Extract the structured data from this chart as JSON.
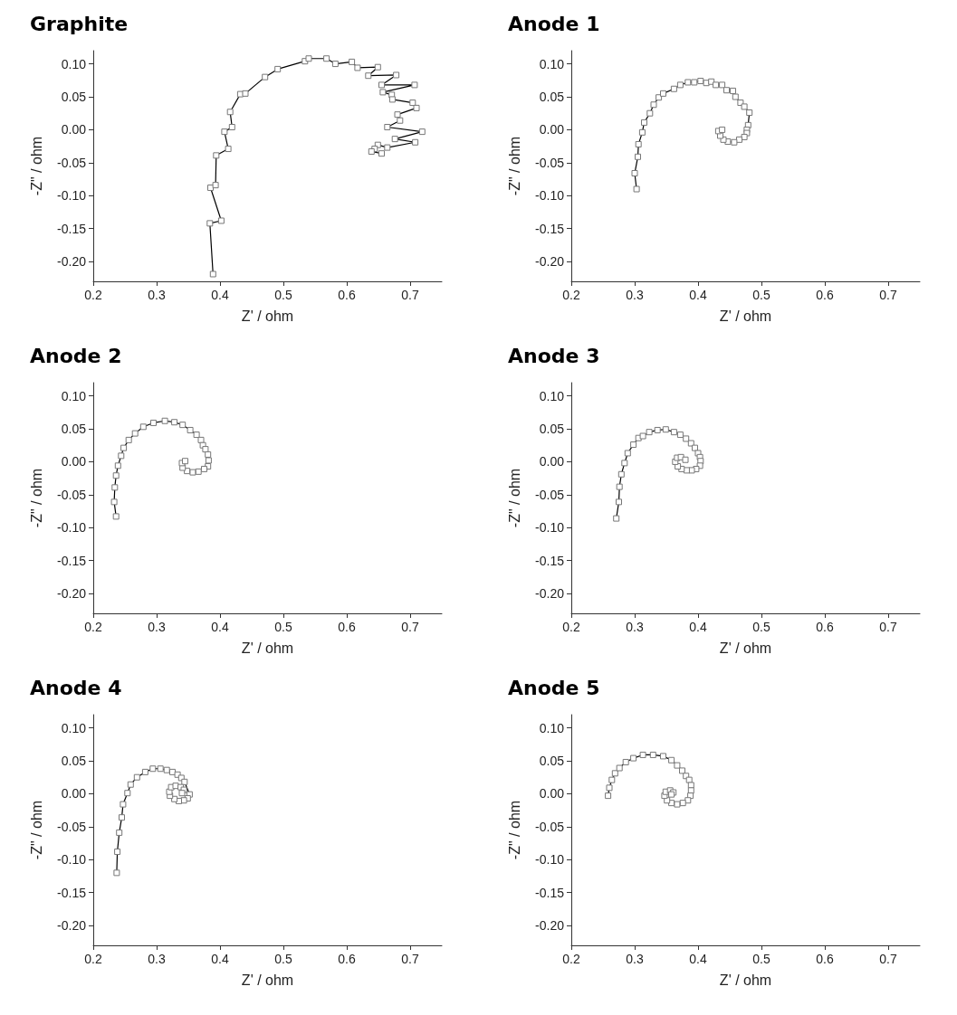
{
  "chart_data": [
    {
      "type": "line",
      "title": "Graphite",
      "xlabel": "Z' / ohm",
      "ylabel": "-Z\" / ohm",
      "xlim": [
        0.2,
        0.75
      ],
      "ylim": [
        -0.23,
        0.12
      ],
      "xticks": [
        0.2,
        0.3,
        0.4,
        0.5,
        0.6,
        0.7
      ],
      "yticks": [
        {
          "value": -0.2,
          "label": "-0.20"
        },
        -0.15,
        {
          "value": -0.1,
          "label": "-0.10"
        },
        -0.05,
        {
          "value": 0,
          "label": "0.00"
        },
        0.05,
        {
          "value": 0.1,
          "label": "0.10"
        }
      ],
      "marker": "square",
      "line_style": "solid",
      "series": [
        {
          "color": "#000000",
          "x": [
            0.389,
            0.384,
            0.402,
            0.385,
            0.393,
            0.394,
            0.413,
            0.407,
            0.419,
            0.416,
            0.432,
            0.44,
            0.471,
            0.491,
            0.534,
            0.54,
            0.568,
            0.582,
            0.608,
            0.617,
            0.649,
            0.634,
            0.678,
            0.655,
            0.707,
            0.657,
            0.671,
            0.672,
            0.704,
            0.71,
            0.68,
            0.684,
            0.664,
            0.719,
            0.676,
            0.708,
            0.664,
            0.649,
            0.644,
            0.639,
            0.655
          ],
          "values": [
            -0.219,
            -0.142,
            -0.138,
            -0.088,
            -0.084,
            -0.039,
            -0.029,
            -0.003,
            0.004,
            0.027,
            0.054,
            0.055,
            0.08,
            0.092,
            0.104,
            0.108,
            0.108,
            0.1,
            0.103,
            0.094,
            0.095,
            0.082,
            0.083,
            0.068,
            0.068,
            0.057,
            0.053,
            0.046,
            0.041,
            0.033,
            0.023,
            0.014,
            0.004,
            -0.003,
            -0.014,
            -0.019,
            -0.027,
            -0.023,
            -0.029,
            -0.033,
            -0.036
          ]
        }
      ]
    },
    {
      "type": "line",
      "title": "Anode 1",
      "xlabel": "Z' / ohm",
      "ylabel": "-Z\" / ohm",
      "xlim": [
        0.2,
        0.75
      ],
      "ylim": [
        -0.23,
        0.12
      ],
      "xticks": [
        0.2,
        0.3,
        0.4,
        0.5,
        0.6,
        0.7
      ],
      "yticks": [
        {
          "value": -0.2,
          "label": "-0.20"
        },
        -0.15,
        {
          "value": -0.1,
          "label": "-0.10"
        },
        -0.05,
        {
          "value": 0,
          "label": "0.00"
        },
        0.05,
        {
          "value": 0.1,
          "label": "0.10"
        }
      ],
      "marker": "square",
      "line_style": "solid",
      "series": [
        {
          "color": "#000000",
          "x": [
            0.303,
            0.3,
            0.305,
            0.306,
            0.312,
            0.315,
            0.324,
            0.33,
            0.338,
            0.345,
            0.362,
            0.372,
            0.384,
            0.394,
            0.404,
            0.413,
            0.421,
            0.428,
            0.438,
            0.445,
            0.455,
            0.459,
            0.467,
            0.473,
            0.481,
            0.479,
            0.477,
            0.477,
            0.473,
            0.465,
            0.457,
            0.447,
            0.44,
            0.435,
            0.432,
            0.438
          ],
          "values": [
            -0.09,
            -0.066,
            -0.041,
            -0.022,
            -0.004,
            0.011,
            0.025,
            0.038,
            0.049,
            0.055,
            0.062,
            0.068,
            0.072,
            0.072,
            0.074,
            0.071,
            0.073,
            0.068,
            0.068,
            0.06,
            0.059,
            0.05,
            0.041,
            0.035,
            0.026,
            0.007,
            0,
            -0.005,
            -0.011,
            -0.015,
            -0.019,
            -0.018,
            -0.015,
            -0.009,
            -0.002,
            0
          ]
        }
      ]
    },
    {
      "type": "line",
      "title": "Anode 2",
      "xlabel": "Z' / ohm",
      "ylabel": "-Z\" / ohm",
      "xlim": [
        0.2,
        0.75
      ],
      "ylim": [
        -0.23,
        0.12
      ],
      "xticks": [
        0.2,
        0.3,
        0.4,
        0.5,
        0.6,
        0.7
      ],
      "yticks": [
        {
          "value": -0.2,
          "label": "-0.20"
        },
        -0.15,
        {
          "value": -0.1,
          "label": "-0.10"
        },
        -0.05,
        {
          "value": 0,
          "label": "0.00"
        },
        0.05,
        {
          "value": 0.1,
          "label": "0.10"
        }
      ],
      "marker": "square",
      "line_style": "solid",
      "series": [
        {
          "color": "#000000",
          "x": [
            0.236,
            0.233,
            0.234,
            0.236,
            0.239,
            0.244,
            0.248,
            0.256,
            0.266,
            0.279,
            0.295,
            0.313,
            0.328,
            0.341,
            0.353,
            0.363,
            0.37,
            0.373,
            0.377,
            0.381,
            0.382,
            0.381,
            0.375,
            0.366,
            0.357,
            0.348,
            0.341,
            0.34,
            0.345
          ],
          "values": [
            -0.083,
            -0.061,
            -0.039,
            -0.021,
            -0.006,
            0.009,
            0.021,
            0.033,
            0.043,
            0.053,
            0.059,
            0.062,
            0.06,
            0.056,
            0.048,
            0.041,
            0.033,
            0.025,
            0.019,
            0.011,
            0.002,
            -0.007,
            -0.011,
            -0.015,
            -0.016,
            -0.014,
            -0.009,
            -0.002,
            0.001
          ]
        }
      ]
    },
    {
      "type": "line",
      "title": "Anode 3",
      "xlabel": "Z' / ohm",
      "ylabel": "-Z\" / ohm",
      "xlim": [
        0.2,
        0.75
      ],
      "ylim": [
        -0.23,
        0.12
      ],
      "xticks": [
        0.2,
        0.3,
        0.4,
        0.5,
        0.6,
        0.7
      ],
      "yticks": [
        {
          "value": -0.2,
          "label": "-0.20"
        },
        -0.15,
        {
          "value": -0.1,
          "label": "-0.10"
        },
        -0.05,
        {
          "value": 0,
          "label": "0.00"
        },
        0.05,
        {
          "value": 0.1,
          "label": "0.10"
        }
      ],
      "marker": "square",
      "line_style": "solid",
      "series": [
        {
          "color": "#000000",
          "x": [
            0.271,
            0.275,
            0.276,
            0.279,
            0.284,
            0.289,
            0.298,
            0.306,
            0.313,
            0.323,
            0.336,
            0.349,
            0.362,
            0.372,
            0.381,
            0.389,
            0.395,
            0.4,
            0.403,
            0.404,
            0.403,
            0.397,
            0.39,
            0.382,
            0.374,
            0.368,
            0.364,
            0.367,
            0.373,
            0.38
          ],
          "values": [
            -0.086,
            -0.061,
            -0.038,
            -0.019,
            -0.002,
            0.013,
            0.026,
            0.036,
            0.039,
            0.045,
            0.048,
            0.049,
            0.045,
            0.041,
            0.035,
            0.028,
            0.021,
            0.013,
            0.007,
            0.001,
            -0.006,
            -0.011,
            -0.013,
            -0.013,
            -0.011,
            -0.007,
            0,
            0.006,
            0.007,
            0.003
          ]
        }
      ]
    },
    {
      "type": "line",
      "title": "Anode 4",
      "xlabel": "Z' / ohm",
      "ylabel": "-Z\" / ohm",
      "xlim": [
        0.2,
        0.75
      ],
      "ylim": [
        -0.23,
        0.12
      ],
      "xticks": [
        0.2,
        0.3,
        0.4,
        0.5,
        0.6,
        0.7
      ],
      "yticks": [
        {
          "value": -0.2,
          "label": "-0.20"
        },
        -0.15,
        {
          "value": -0.1,
          "label": "-0.10"
        },
        -0.05,
        {
          "value": 0,
          "label": "0.00"
        },
        0.05,
        {
          "value": 0.1,
          "label": "0.10"
        }
      ],
      "marker": "square",
      "line_style": "solid",
      "series": [
        {
          "color": "#000000",
          "x": [
            0.237,
            0.238,
            0.241,
            0.245,
            0.247,
            0.254,
            0.259,
            0.269,
            0.282,
            0.294,
            0.306,
            0.316,
            0.325,
            0.333,
            0.339,
            0.344,
            0.352,
            0.349,
            0.343,
            0.335,
            0.328,
            0.321,
            0.32,
            0.323,
            0.33,
            0.338,
            0.343,
            0.34
          ],
          "values": [
            -0.12,
            -0.088,
            -0.059,
            -0.036,
            -0.016,
            0.001,
            0.014,
            0.025,
            0.033,
            0.038,
            0.038,
            0.036,
            0.033,
            0.029,
            0.024,
            0.018,
            -0.001,
            -0.007,
            -0.01,
            -0.011,
            -0.008,
            -0.003,
            0.003,
            0.01,
            0.012,
            0.01,
            0.006,
            0.001
          ]
        }
      ]
    },
    {
      "type": "line",
      "title": "Anode 5",
      "xlabel": "Z' / ohm",
      "ylabel": "-Z\" / ohm",
      "xlim": [
        0.2,
        0.75
      ],
      "ylim": [
        -0.23,
        0.12
      ],
      "xticks": [
        0.2,
        0.3,
        0.4,
        0.5,
        0.6,
        0.7
      ],
      "yticks": [
        {
          "value": -0.2,
          "label": "-0.20"
        },
        -0.15,
        {
          "value": -0.1,
          "label": "-0.10"
        },
        -0.05,
        {
          "value": 0,
          "label": "0.00"
        },
        0.05,
        {
          "value": 0.1,
          "label": "0.10"
        }
      ],
      "marker": "square",
      "line_style": "solid",
      "series": [
        {
          "color": "#000000",
          "x": [
            0.258,
            0.26,
            0.264,
            0.269,
            0.276,
            0.286,
            0.298,
            0.313,
            0.329,
            0.345,
            0.358,
            0.367,
            0.375,
            0.381,
            0.386,
            0.389,
            0.389,
            0.388,
            0.384,
            0.376,
            0.367,
            0.358,
            0.351,
            0.347,
            0.349,
            0.356,
            0.361,
            0.358
          ],
          "values": [
            -0.003,
            0.009,
            0.021,
            0.031,
            0.039,
            0.048,
            0.054,
            0.059,
            0.059,
            0.057,
            0.051,
            0.043,
            0.035,
            0.027,
            0.021,
            0.013,
            0.005,
            -0.003,
            -0.01,
            -0.014,
            -0.016,
            -0.014,
            -0.01,
            -0.003,
            0.003,
            0.005,
            0.002,
            -0.001
          ]
        }
      ]
    }
  ]
}
